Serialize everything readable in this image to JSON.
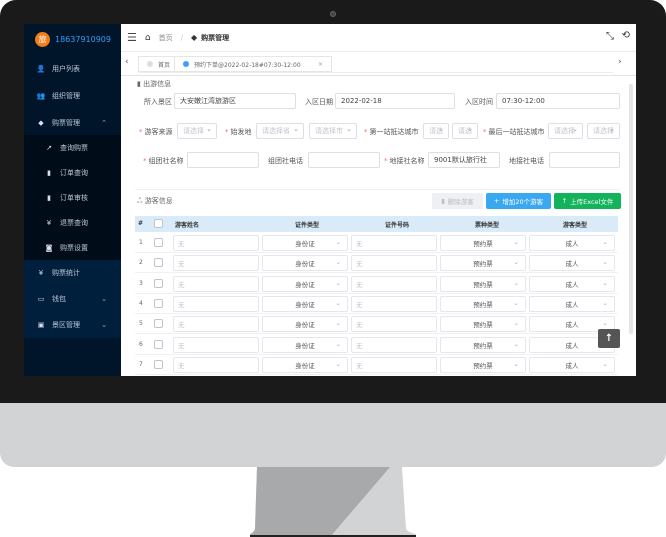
{
  "user": {
    "avatar_char": "旅",
    "phone": "18637910909"
  },
  "sidebar": {
    "items": [
      {
        "label": "用户列表",
        "icon": "user-icon"
      },
      {
        "label": "组织管理",
        "icon": "org-icon"
      },
      {
        "label": "购票管理",
        "icon": "tag-icon",
        "expanded": true
      },
      {
        "label": "查询购票",
        "icon": "trend-icon",
        "sub": true
      },
      {
        "label": "订单查询",
        "icon": "doc-icon",
        "sub": true
      },
      {
        "label": "订单审核",
        "icon": "doc-icon",
        "sub": true
      },
      {
        "label": "退票查询",
        "icon": "yen-icon",
        "sub": true
      },
      {
        "label": "购票设置",
        "icon": "camera-icon",
        "sub": true
      },
      {
        "label": "购票统计",
        "icon": "yen-icon"
      },
      {
        "label": "钱包",
        "icon": "wallet-icon",
        "collapsible": true
      },
      {
        "label": "景区管理",
        "icon": "image-icon",
        "collapsible": true
      }
    ]
  },
  "breadcrumb": {
    "home": "首页",
    "current": "购票管理"
  },
  "tabs": [
    {
      "label": "首页",
      "active": false
    },
    {
      "label": "预约下单@2022-02-18#07:30-12:00",
      "active": true
    }
  ],
  "trip": {
    "section_title": "出游信息",
    "scenic_label": "所入景区",
    "scenic_value": "大安嫩江湾旅游区",
    "date_label": "入区日期",
    "date_value": "2022-02-18",
    "time_label": "入区时间",
    "time_value": "07:30-12:00",
    "source_label": "游客来源",
    "source_ph": "请选择",
    "origin_label": "始发地",
    "province_ph": "请选择省",
    "city_ph": "请选择市",
    "first_city_label": "第一站抵达城市",
    "first_ph1": "请选",
    "first_ph2": "请选",
    "last_city_label": "最后一站抵达城市",
    "last_ph1": "请选择",
    "last_ph2": "请选择",
    "group_name_label": "组团社名称",
    "group_name_value": "",
    "group_phone_label": "组团社电话",
    "group_phone_value": "",
    "local_name_label": "地接社名称",
    "local_name_value": "9001默认旅行社",
    "local_phone_label": "地接社电话",
    "local_phone_value": ""
  },
  "tourists": {
    "section_title": "游客信息",
    "delete_btn": "删除游客",
    "add_btn": "增加20个游客",
    "upload_btn": "上传Excel文件",
    "columns": [
      "#",
      "游客姓名",
      "证件类型",
      "证件号码",
      "票种类型",
      "游客类型"
    ],
    "rows": [
      {
        "no": "1",
        "name_ph": "无",
        "id_type": "身份证",
        "id_ph": "无",
        "ticket": "预约票",
        "type": "成人"
      },
      {
        "no": "2",
        "name_ph": "无",
        "id_type": "身份证",
        "id_ph": "无",
        "ticket": "预约票",
        "type": "成人"
      },
      {
        "no": "3",
        "name_ph": "无",
        "id_type": "身份证",
        "id_ph": "无",
        "ticket": "预约票",
        "type": "成人"
      },
      {
        "no": "4",
        "name_ph": "无",
        "id_type": "身份证",
        "id_ph": "无",
        "ticket": "预约票",
        "type": "成人"
      },
      {
        "no": "5",
        "name_ph": "无",
        "id_type": "身份证",
        "id_ph": "无",
        "ticket": "预约票",
        "type": "成人"
      },
      {
        "no": "6",
        "name_ph": "无",
        "id_type": "身份证",
        "id_ph": "无",
        "ticket": "预约票",
        "type": "成人"
      },
      {
        "no": "7",
        "name_ph": "无",
        "id_type": "身份证",
        "id_ph": "无",
        "ticket": "预约票",
        "type": "成人"
      }
    ]
  },
  "colors": {
    "sidebar": "#001529",
    "primary": "#409eff",
    "add": "#3aa8f0",
    "upload": "#13b35b",
    "avatar": "#f07c1c"
  }
}
